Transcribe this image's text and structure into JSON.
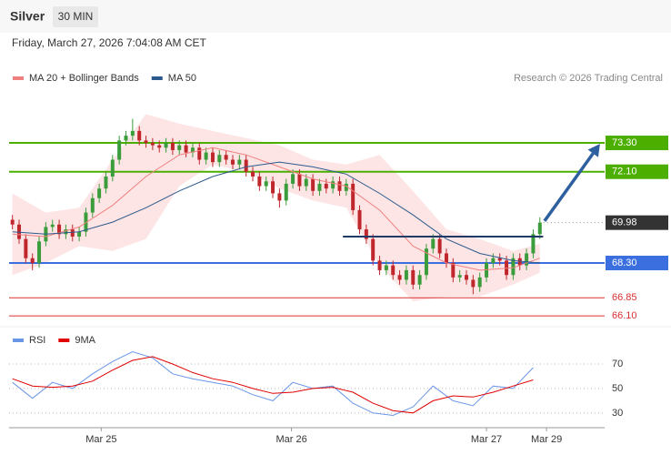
{
  "header": {
    "title": "Silver",
    "interval": "30 MIN",
    "timestamp": "Friday, March 27, 2026 7:04:08 AM CET"
  },
  "chart_data": [
    {
      "type": "candlestick",
      "credit": "Research © 2026 Trading Central",
      "up_color": "#3a9c3a",
      "down_color": "#c0272d",
      "open": [
        70.1,
        69.9,
        69.3,
        68.5,
        68.3,
        69.2,
        69.8,
        69.9,
        69.5,
        69.7,
        69.4,
        69.6,
        70.4,
        71.0,
        71.4,
        71.9,
        72.6,
        73.4,
        73.6,
        73.8,
        73.4,
        73.3,
        73.2,
        73.1,
        73.3,
        73.0,
        73.2,
        72.9,
        73.1,
        72.6,
        72.9,
        72.5,
        72.8,
        72.6,
        72.4,
        72.6,
        72.1,
        71.9,
        71.5,
        71.7,
        71.2,
        70.9,
        71.6,
        72.0,
        71.5,
        71.8,
        71.3,
        71.6,
        71.4,
        71.7,
        71.3,
        71.6,
        70.5,
        69.7,
        69.3,
        68.4,
        68.0,
        68.2,
        67.8,
        67.6,
        68.0,
        67.4,
        67.8,
        68.9,
        69.3,
        68.7,
        68.3,
        67.7,
        67.8,
        67.6,
        67.3,
        67.7,
        68.3,
        68.5,
        68.4,
        67.8,
        68.5,
        68.2,
        68.7,
        69.5
      ],
      "high": [
        70.3,
        70.1,
        69.5,
        68.7,
        69.4,
        70.0,
        70.1,
        70.1,
        69.9,
        69.9,
        69.8,
        70.6,
        71.2,
        71.6,
        72.1,
        72.8,
        73.6,
        73.8,
        74.3,
        74.0,
        73.6,
        73.5,
        73.4,
        73.5,
        73.5,
        73.4,
        73.4,
        73.3,
        73.3,
        73.1,
        73.1,
        73.0,
        73.0,
        72.8,
        72.8,
        72.8,
        72.3,
        72.1,
        71.9,
        71.9,
        71.4,
        71.8,
        72.2,
        72.2,
        72.0,
        72.0,
        71.8,
        71.8,
        71.9,
        71.9,
        71.8,
        71.8,
        70.7,
        69.9,
        69.5,
        68.6,
        68.4,
        68.4,
        68.0,
        68.2,
        68.2,
        68.0,
        69.1,
        69.5,
        69.5,
        68.9,
        68.5,
        68.0,
        68.0,
        67.8,
        67.9,
        68.5,
        68.7,
        68.7,
        68.6,
        68.7,
        68.7,
        68.9,
        69.7,
        70.2
      ],
      "low": [
        69.7,
        69.1,
        68.3,
        68.0,
        68.1,
        69.0,
        69.6,
        69.3,
        69.3,
        69.2,
        69.2,
        69.4,
        70.2,
        70.8,
        71.2,
        71.7,
        72.4,
        73.2,
        73.4,
        73.2,
        73.1,
        73.0,
        72.9,
        72.9,
        72.8,
        72.8,
        72.7,
        72.7,
        72.4,
        72.4,
        72.3,
        72.3,
        72.4,
        72.2,
        72.2,
        71.9,
        71.7,
        71.3,
        71.3,
        71.0,
        70.6,
        70.7,
        71.4,
        71.3,
        71.3,
        71.1,
        71.1,
        71.2,
        71.2,
        71.1,
        71.1,
        70.3,
        69.5,
        69.1,
        68.2,
        67.8,
        67.8,
        67.6,
        67.4,
        67.4,
        67.2,
        67.2,
        67.6,
        68.7,
        68.5,
        68.1,
        67.5,
        67.5,
        67.4,
        67.0,
        67.1,
        67.5,
        68.1,
        68.2,
        67.6,
        67.6,
        68.0,
        68.0,
        68.5,
        69.3
      ],
      "close": [
        69.9,
        69.3,
        68.5,
        68.3,
        69.2,
        69.8,
        69.9,
        69.5,
        69.7,
        69.4,
        69.6,
        70.4,
        71.0,
        71.4,
        71.9,
        72.6,
        73.4,
        73.6,
        73.8,
        73.4,
        73.3,
        73.2,
        73.1,
        73.3,
        73.0,
        73.2,
        72.9,
        73.1,
        72.6,
        72.9,
        72.5,
        72.8,
        72.6,
        72.4,
        72.6,
        72.1,
        71.9,
        71.5,
        71.7,
        71.2,
        70.9,
        71.6,
        72.0,
        71.5,
        71.8,
        71.3,
        71.6,
        71.4,
        71.7,
        71.3,
        71.6,
        70.5,
        69.7,
        69.3,
        68.4,
        68.0,
        68.2,
        67.8,
        67.6,
        68.0,
        67.4,
        67.8,
        68.9,
        69.3,
        68.7,
        68.3,
        67.7,
        67.8,
        67.6,
        67.3,
        67.7,
        68.3,
        68.5,
        68.4,
        67.8,
        68.5,
        68.2,
        68.7,
        69.5,
        69.98
      ],
      "series": [
        {
          "name": "MA 20 + Bollinger Bands",
          "color": "#f08080",
          "band_color": "#fde0e0",
          "x": [
            0,
            5,
            10,
            15,
            20,
            25,
            30,
            35,
            40,
            45,
            50,
            55,
            60,
            65,
            70,
            75,
            79
          ],
          "values": [
            69.5,
            69.4,
            69.8,
            70.7,
            71.9,
            72.8,
            73.1,
            72.8,
            72.3,
            71.8,
            71.5,
            70.5,
            69.0,
            68.3,
            68.0,
            68.1,
            68.5
          ],
          "upper": [
            71.2,
            70.4,
            70.6,
            72.6,
            74.5,
            74.1,
            73.8,
            73.5,
            73.2,
            72.6,
            72.4,
            72.8,
            71.3,
            69.7,
            69.3,
            68.8,
            69.1
          ],
          "lower": [
            67.8,
            68.3,
            69.0,
            68.8,
            69.3,
            71.5,
            72.4,
            72.1,
            71.4,
            70.9,
            70.6,
            68.2,
            66.7,
            66.9,
            66.9,
            67.4,
            67.9
          ]
        },
        {
          "name": "MA 50",
          "color": "#2c5a8c",
          "x": [
            0,
            5,
            10,
            15,
            20,
            25,
            30,
            35,
            40,
            45,
            50,
            55,
            60,
            65,
            70,
            75,
            79
          ],
          "values": [
            69.6,
            69.5,
            69.6,
            70.0,
            70.6,
            71.3,
            71.9,
            72.3,
            72.5,
            72.3,
            72.0,
            71.2,
            70.3,
            69.3,
            68.7,
            68.4,
            68.3
          ]
        }
      ],
      "levels": [
        {
          "value": 73.3,
          "label": "73.30",
          "color": "#4caf00",
          "box": true
        },
        {
          "value": 72.1,
          "label": "72.10",
          "color": "#4caf00",
          "box": true
        },
        {
          "value": 69.98,
          "color": "#333333",
          "box": true,
          "dotted": true
        },
        {
          "value": 68.3,
          "label": "68.30",
          "color": "#3b6fe0",
          "box": true
        },
        {
          "value": 66.85,
          "color": "#d93030",
          "box": false
        },
        {
          "value": 66.1,
          "label": "66.10",
          "color": "#d93030",
          "box": false
        }
      ],
      "pivot": {
        "value": 69.4,
        "from": 49.5,
        "to": 79.5,
        "color": "#1f3a66"
      },
      "arrow": {
        "from": [
          79.7,
          70.05
        ],
        "to": [
          88.0,
          73.26
        ],
        "color": "#2e5f9e"
      },
      "xlim": [
        -0.5,
        88.7
      ],
      "ylim": [
        65.8,
        75.65
      ],
      "xticks": [
        {
          "value": 13.3,
          "label": "Mar 25"
        },
        {
          "value": 41.8,
          "label": "Mar 26"
        },
        {
          "value": 71,
          "label": "Mar 27"
        },
        {
          "value": 80,
          "label": "Mar 29"
        }
      ]
    },
    {
      "type": "line",
      "series": [
        {
          "name": "RSI",
          "color": "#6a96e6",
          "x": [
            0,
            3,
            6,
            9,
            12,
            15,
            18,
            21,
            24,
            27,
            30,
            33,
            36,
            39,
            42,
            45,
            48,
            51,
            54,
            57,
            60,
            63,
            66,
            69,
            72,
            75,
            78
          ],
          "values": [
            55,
            42,
            55,
            50,
            62,
            72,
            80,
            75,
            62,
            58,
            55,
            52,
            45,
            40,
            55,
            50,
            52,
            38,
            30,
            28,
            35,
            52,
            40,
            36,
            52,
            50,
            67
          ]
        },
        {
          "name": "9MA",
          "color": "#e00000",
          "x": [
            0,
            3,
            6,
            9,
            12,
            15,
            18,
            21,
            24,
            27,
            30,
            33,
            36,
            39,
            42,
            45,
            48,
            51,
            54,
            57,
            60,
            63,
            66,
            69,
            72,
            75,
            78
          ],
          "values": [
            58,
            52,
            51,
            52,
            56,
            65,
            73,
            76,
            70,
            63,
            58,
            55,
            50,
            46,
            47,
            50,
            51,
            47,
            38,
            32,
            30,
            40,
            44,
            43,
            47,
            52,
            57
          ]
        }
      ],
      "xlim": [
        -0.5,
        88.7
      ],
      "ylim": [
        18,
        96
      ],
      "yticks": [
        70,
        50,
        30
      ]
    }
  ]
}
